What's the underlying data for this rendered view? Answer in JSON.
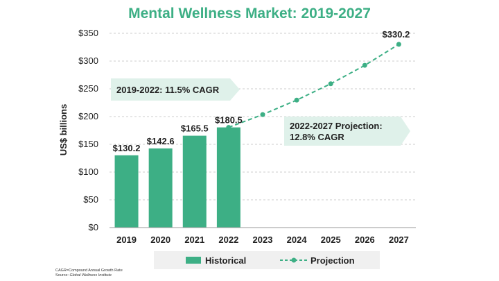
{
  "chart_data": {
    "type": "bar",
    "title": "Mental Wellness Market: 2019-2027",
    "ylabel": "US$ billions",
    "xlabel": "",
    "ylim": [
      0,
      350
    ],
    "yticks": [
      0,
      50,
      100,
      150,
      200,
      250,
      300,
      350
    ],
    "ytick_labels": [
      "$0",
      "$50",
      "$100",
      "$150",
      "$200",
      "$250",
      "$300",
      "$350"
    ],
    "categories": [
      "2019",
      "2020",
      "2021",
      "2022",
      "2023",
      "2024",
      "2025",
      "2026",
      "2027"
    ],
    "series": [
      {
        "name": "Historical",
        "type": "bar",
        "color": "#3daf85",
        "x": [
          "2019",
          "2020",
          "2021",
          "2022"
        ],
        "values": [
          130.2,
          142.6,
          165.5,
          180.5
        ],
        "labels": [
          "$130.2",
          "$142.6",
          "$165.5",
          "$180.5"
        ]
      },
      {
        "name": "Projection",
        "type": "line",
        "style": "dashed-with-markers",
        "color": "#3daf85",
        "x": [
          "2022",
          "2023",
          "2024",
          "2025",
          "2026",
          "2027"
        ],
        "values": [
          180.5,
          203.6,
          229.7,
          259.1,
          292.3,
          330.2
        ],
        "labels": [
          "",
          "",
          "",
          "",
          "",
          "$330.2"
        ]
      }
    ],
    "annotations": [
      {
        "text": "2019-2022: 11.5% CAGR",
        "lines": [
          "2019-2022: 11.5% CAGR"
        ]
      },
      {
        "text": "2022-2027 Projection: 12.8% CAGR",
        "lines": [
          "2022-2027 Projection:",
          "12.8% CAGR"
        ]
      }
    ],
    "legend": {
      "placement": "bottom",
      "items": [
        "Historical",
        "Projection"
      ]
    },
    "grid": "horizontal dashed",
    "colors": {
      "accent": "#3daf85",
      "banner": "#dff1ea",
      "legend_bg": "#f0f0f0",
      "grid": "#cccccc"
    }
  },
  "footnotes": {
    "cagr_definition": "CAGR=Compound Annual Growth Rate",
    "source_label": "Source:",
    "source_name": "Global Wellness Institute"
  }
}
